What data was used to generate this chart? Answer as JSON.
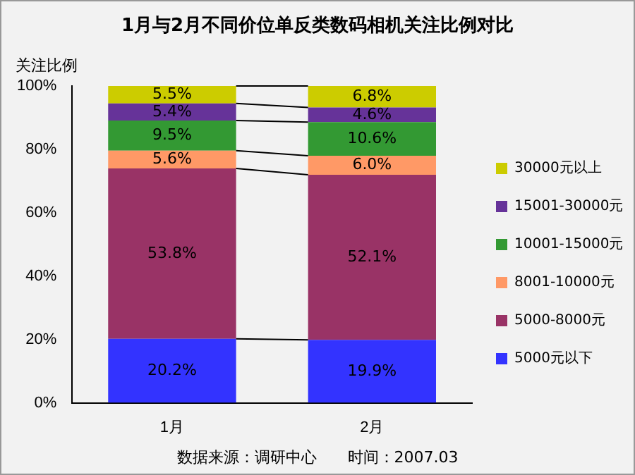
{
  "chart_data": {
    "type": "bar",
    "stacked": true,
    "title": "1月与2月不同价位单反类数码相机关注比例对比",
    "ylabel": "关注比例",
    "categories": [
      "1月",
      "2月"
    ],
    "series": [
      {
        "name": "5000元以下",
        "color": "#3333ff",
        "values": [
          20.2,
          19.9
        ],
        "value_labels": [
          "20.2%",
          "19.9%"
        ]
      },
      {
        "name": "5000-8000元",
        "color": "#993366",
        "values": [
          53.8,
          52.1
        ],
        "value_labels": [
          "53.8%",
          "52.1%"
        ]
      },
      {
        "name": "8001-10000元",
        "color": "#ff9966",
        "values": [
          5.6,
          6.0
        ],
        "value_labels": [
          "5.6%",
          "6.0%"
        ]
      },
      {
        "name": "10001-15000元",
        "color": "#339933",
        "values": [
          9.5,
          10.6
        ],
        "value_labels": [
          "9.5%",
          "10.6%"
        ]
      },
      {
        "name": "15001-30000元",
        "color": "#663399",
        "values": [
          5.4,
          4.6
        ],
        "value_labels": [
          "5.4%",
          "4.6%"
        ]
      },
      {
        "name": "30000元以上",
        "color": "#cccc00",
        "values": [
          5.5,
          6.8
        ],
        "value_labels": [
          "5.5%",
          "6.8%"
        ]
      }
    ],
    "ylim": [
      0,
      100
    ],
    "yticks": [
      {
        "value": 0,
        "label": "0%"
      },
      {
        "value": 20,
        "label": "20%"
      },
      {
        "value": 40,
        "label": "40%"
      },
      {
        "value": 60,
        "label": "60%"
      },
      {
        "value": 80,
        "label": "80%"
      },
      {
        "value": 100,
        "label": "100%"
      }
    ],
    "grid": false,
    "legend": "right",
    "annotations": [
      "数据来源：调研中心　　时间：2007.03"
    ]
  }
}
